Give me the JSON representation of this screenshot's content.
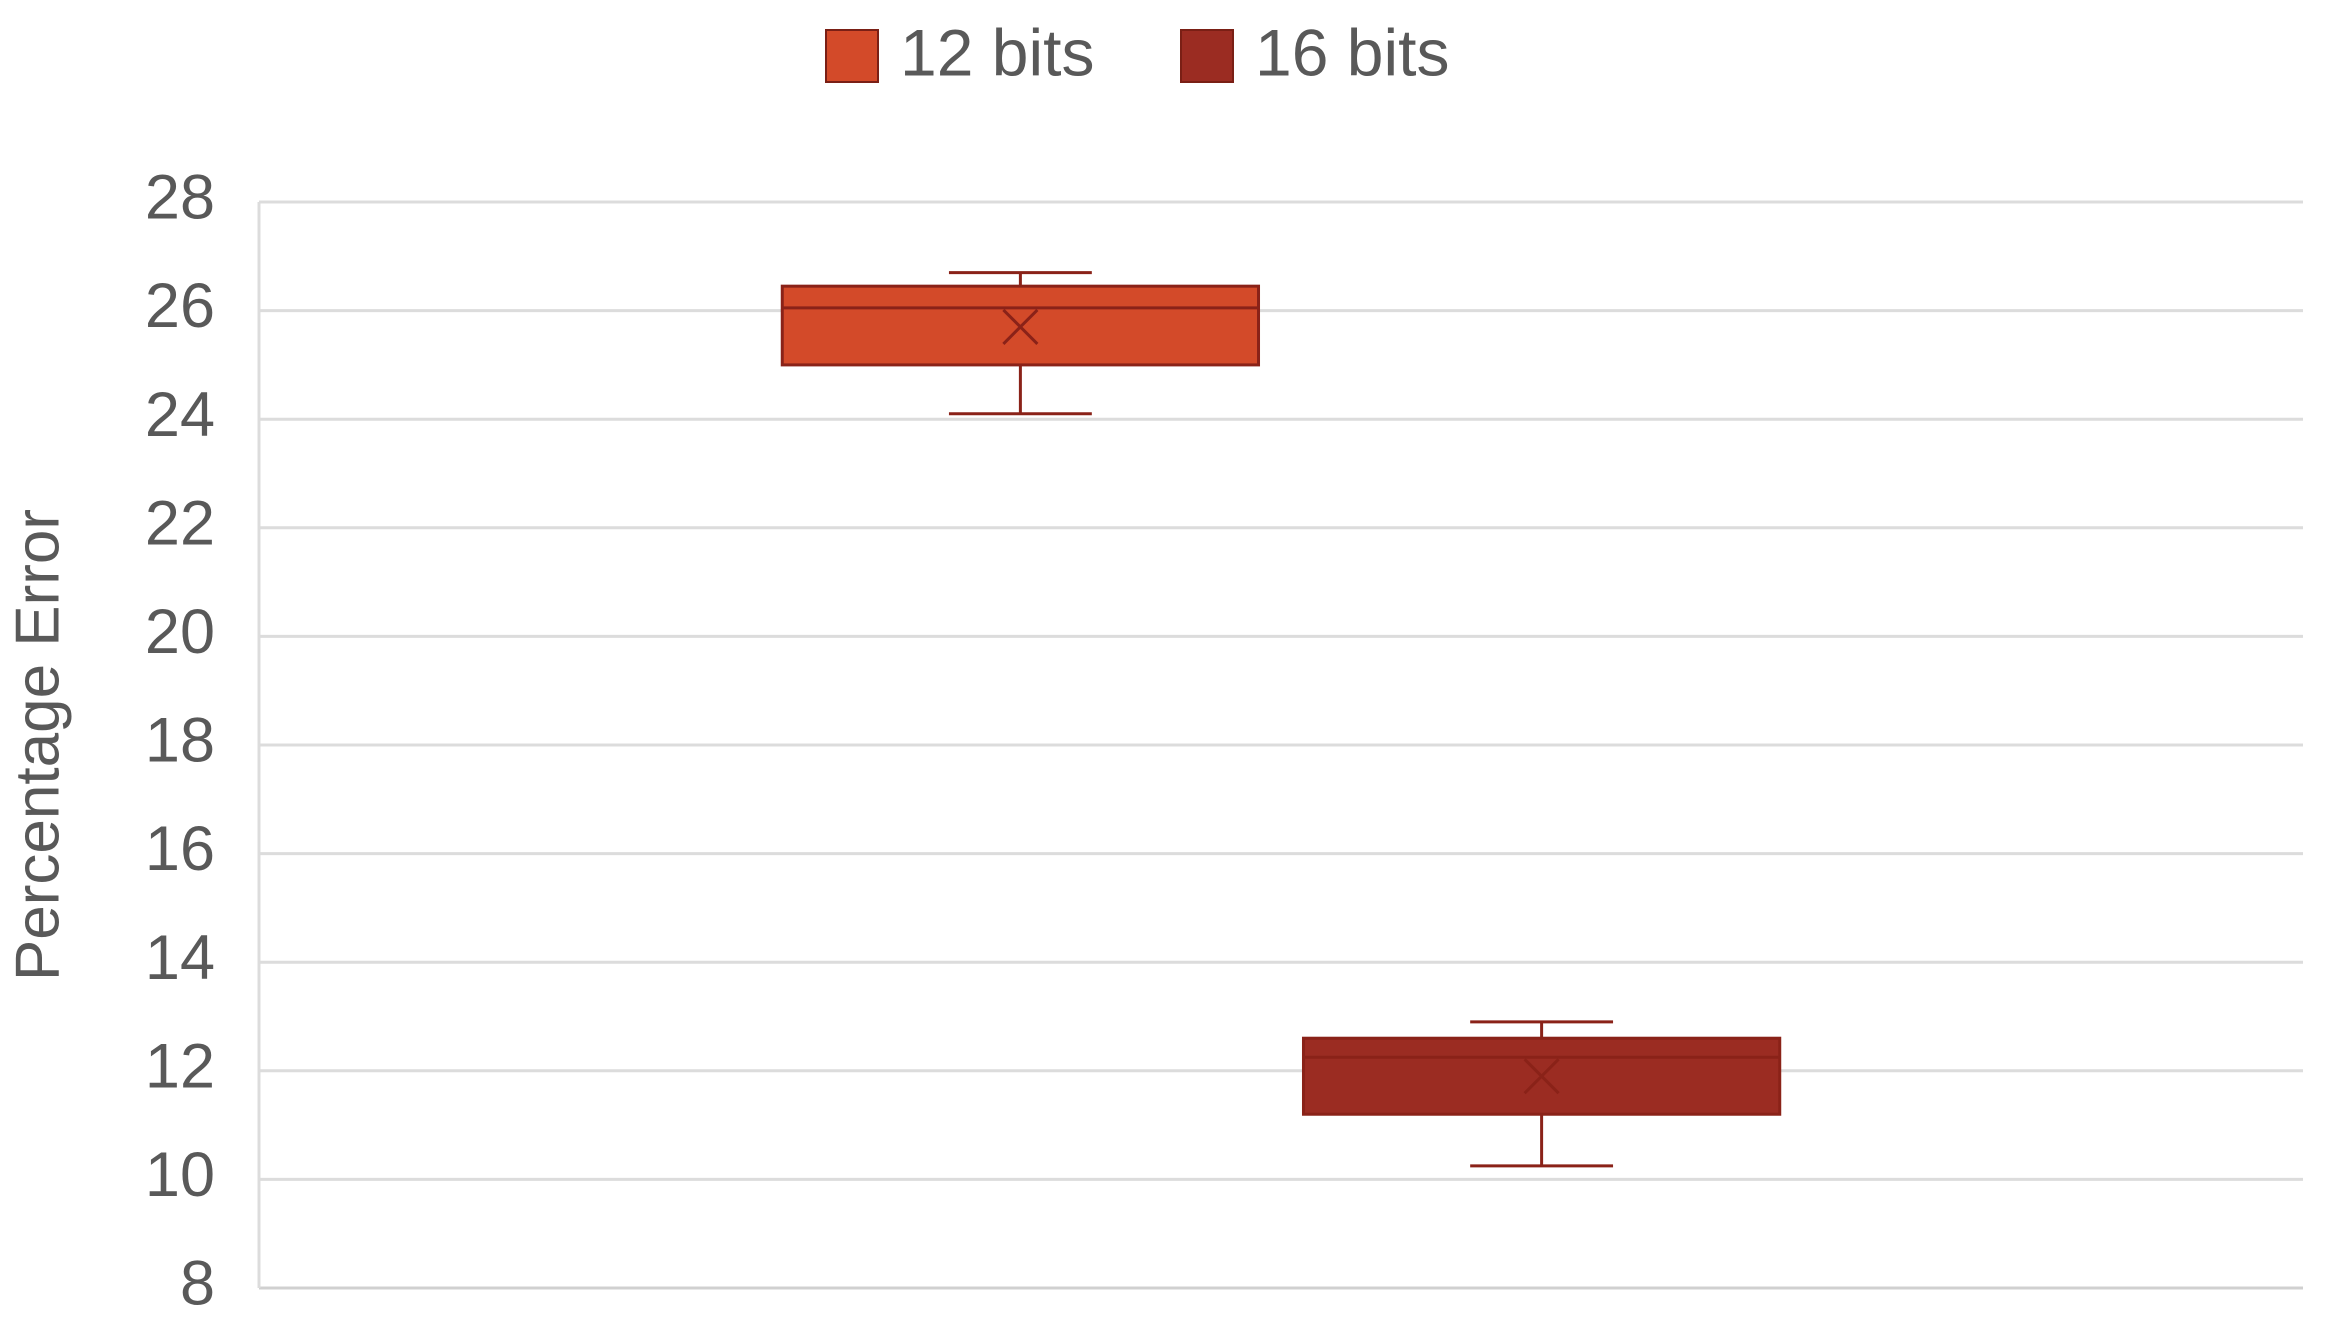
{
  "chart_data": {
    "type": "box",
    "y_label": "Percentage Error",
    "ylim": [
      8,
      28
    ],
    "yticks": [
      8,
      10,
      12,
      14,
      16,
      18,
      20,
      22,
      24,
      26,
      28
    ],
    "grid": true,
    "legend": "top",
    "series": [
      {
        "name": "12 bits",
        "color": "#d34a29",
        "min": 24.1,
        "q1": 25.0,
        "median": 26.05,
        "q3": 26.45,
        "max": 26.7,
        "mean": 25.7
      },
      {
        "name": "16 bits",
        "color": "#9b2c22",
        "min": 10.25,
        "q1": 11.2,
        "median": 12.25,
        "q3": 12.6,
        "max": 12.9,
        "mean": 11.9
      }
    ]
  }
}
